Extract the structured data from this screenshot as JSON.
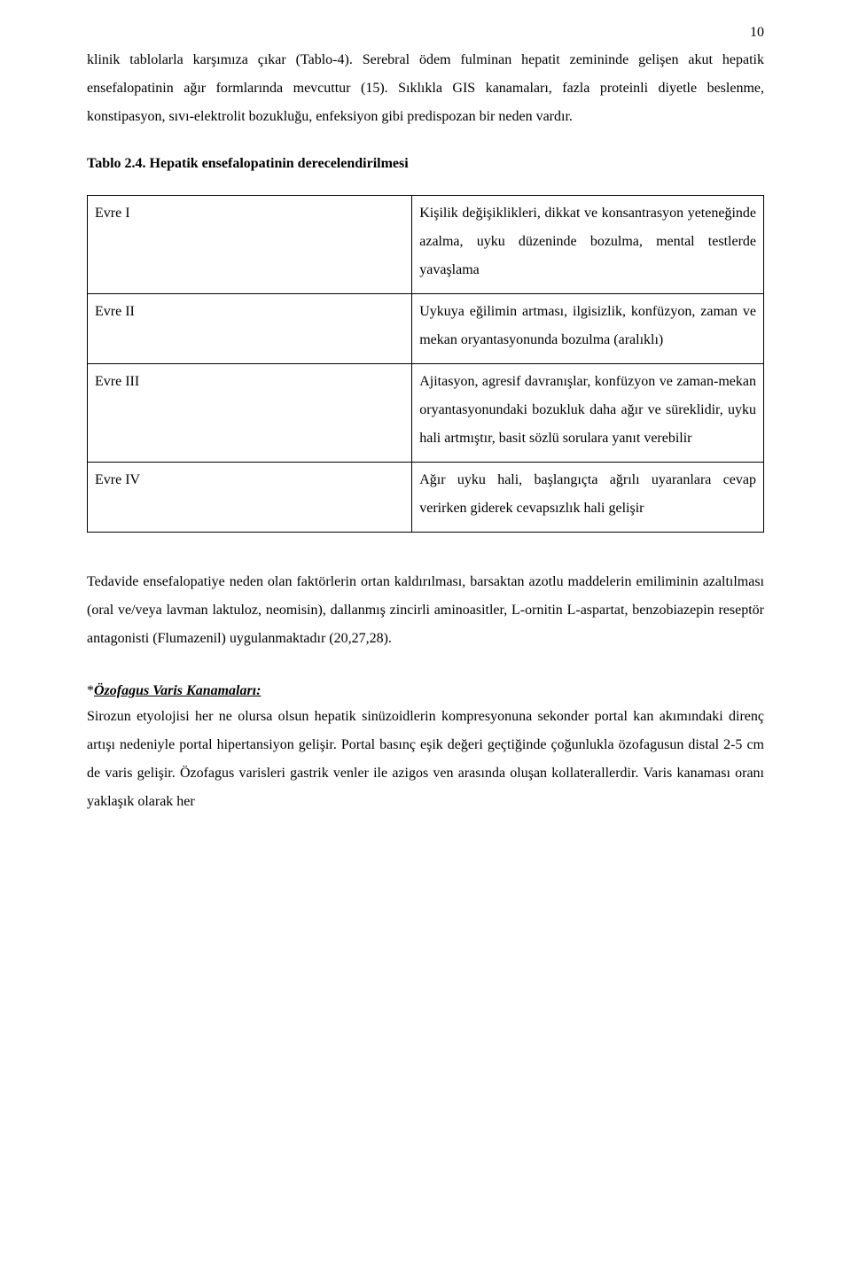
{
  "page": {
    "number": "10"
  },
  "para1": "klinik tablolarla karşımıza çıkar (Tablo-4). Serebral ödem fulminan hepatit zemininde gelişen akut hepatik ensefalopatinin ağır formlarında mevcuttur (15). Sıklıkla GIS kanamaları, fazla proteinli diyetle beslenme, konstipasyon, sıvı-elektrolit bozukluğu, enfeksiyon gibi predispozan bir neden vardır.",
  "tableTitle": "Tablo 2.4. Hepatik ensefalopatinin derecelendirilmesi",
  "stages": {
    "r1label": "Evre I",
    "r1desc": "Kişilik değişiklikleri, dikkat ve konsantrasyon yeteneğinde azalma, uyku düzeninde bozulma, mental testlerde yavaşlama",
    "r2label": "Evre II",
    "r2desc": "Uykuya eğilimin artması, ilgisizlik, konfüzyon, zaman ve mekan oryantasyonunda bozulma (aralıklı)",
    "r3label": "Evre III",
    "r3desc": "Ajitasyon, agresif davranışlar, konfüzyon ve zaman-mekan oryantasyonundaki bozukluk daha ağır ve süreklidir, uyku hali artmıştır, basit sözlü sorulara yanıt verebilir",
    "r4label": "Evre IV",
    "r4desc": "Ağır uyku hali, başlangıçta ağrılı uyaranlara cevap verirken giderek cevapsızlık hali gelişir"
  },
  "para2": "Tedavide ensefalopatiye neden olan faktörlerin ortan kaldırılması, barsaktan azotlu maddelerin emiliminin azaltılması (oral ve/veya lavman laktuloz, neomisin), dallanmış zincirli aminoasitler, L-ornitin L-aspartat, benzobiazepin reseptör antagonisti (Flumazenil) uygulanmaktadır (20,27,28).",
  "heading": {
    "star": "*",
    "title": "Özofagus Varis Kanamaları:"
  },
  "para3": "Sirozun etyolojisi her ne olursa olsun hepatik sinüzoidlerin kompresyonuna sekonder portal kan akımındaki direnç artışı nedeniyle portal hipertansiyon gelişir. Portal basınç eşik değeri geçtiğinde çoğunlukla özofagusun distal 2-5 cm de varis gelişir. Özofagus varisleri gastrik venler ile azigos ven arasında oluşan kollaterallerdir. Varis kanaması oranı yaklaşık olarak her"
}
